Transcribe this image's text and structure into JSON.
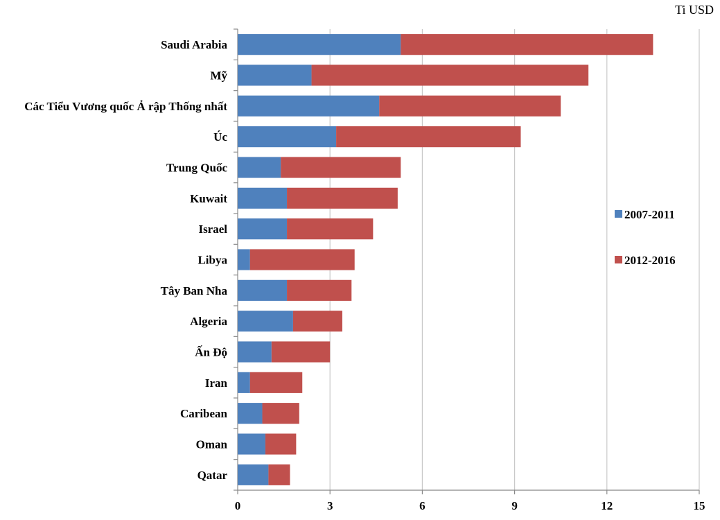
{
  "chart_data": {
    "type": "bar",
    "orientation": "horizontal",
    "stacked": true,
    "unit_label": "Ti USD",
    "categories": [
      "Saudi Arabia",
      "Mỹ",
      "Các Tiểu Vương quốc Ả rập Thống nhất",
      "Úc",
      "Trung Quốc",
      "Kuwait",
      "Israel",
      "Libya",
      "Tây Ban Nha",
      "Algeria",
      "Ấn Độ",
      "Iran",
      "Caribean",
      "Oman",
      "Qatar"
    ],
    "series": [
      {
        "name": "2007-2011",
        "color": "#4f81bd",
        "values": [
          5.3,
          2.4,
          4.6,
          3.2,
          1.4,
          1.6,
          1.6,
          0.4,
          1.6,
          1.8,
          1.1,
          0.4,
          0.8,
          0.9,
          1.0
        ]
      },
      {
        "name": "2012-2016",
        "color": "#c0504d",
        "values": [
          8.2,
          9.0,
          5.9,
          6.0,
          3.9,
          3.6,
          2.8,
          3.4,
          2.1,
          1.6,
          1.9,
          1.7,
          1.2,
          1.0,
          0.7
        ]
      }
    ],
    "xlim": [
      0,
      15
    ],
    "xticks": [
      0,
      3,
      6,
      9,
      12,
      15
    ],
    "xtick_labels": [
      "0",
      "3",
      "6",
      "9",
      "12",
      "15"
    ],
    "grid": true,
    "legend_position": "right"
  }
}
